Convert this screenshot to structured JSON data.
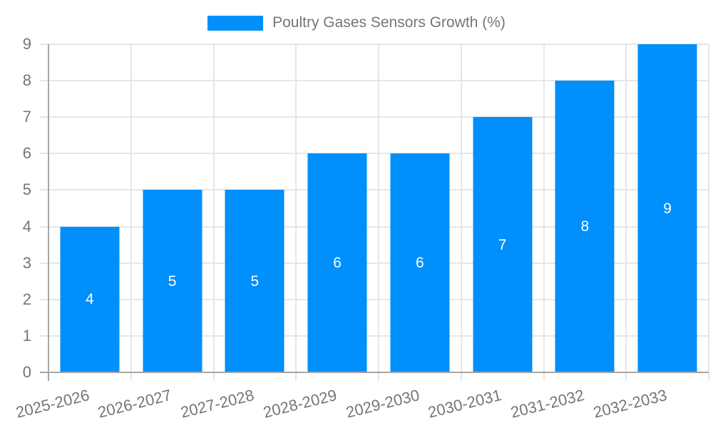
{
  "chart_data": {
    "type": "bar",
    "title": "Poultry Gases Sensors Growth (%)",
    "categories": [
      "2025-2026",
      "2026-2027",
      "2027-2028",
      "2028-2029",
      "2029-2030",
      "2030-2031",
      "2031-2032",
      "2032-2033"
    ],
    "values": [
      4,
      5,
      5,
      6,
      6,
      7,
      8,
      9
    ],
    "xlabel": "",
    "ylabel": "",
    "ylim": [
      0,
      9
    ],
    "ytick_step": 1,
    "yticks": [
      0,
      1,
      2,
      3,
      4,
      5,
      6,
      7,
      8,
      9
    ],
    "grid": true,
    "legend_position": "top-center",
    "value_labels": "inside-center"
  },
  "style": {
    "bar_color": "#008FFB",
    "grid_color": "#e6e6e6",
    "axis_color": "#a6a6a6",
    "tick_text_color": "#757575",
    "legend_text_color": "#757575",
    "value_label_color": "#ffffff",
    "background_color": "#ffffff"
  }
}
